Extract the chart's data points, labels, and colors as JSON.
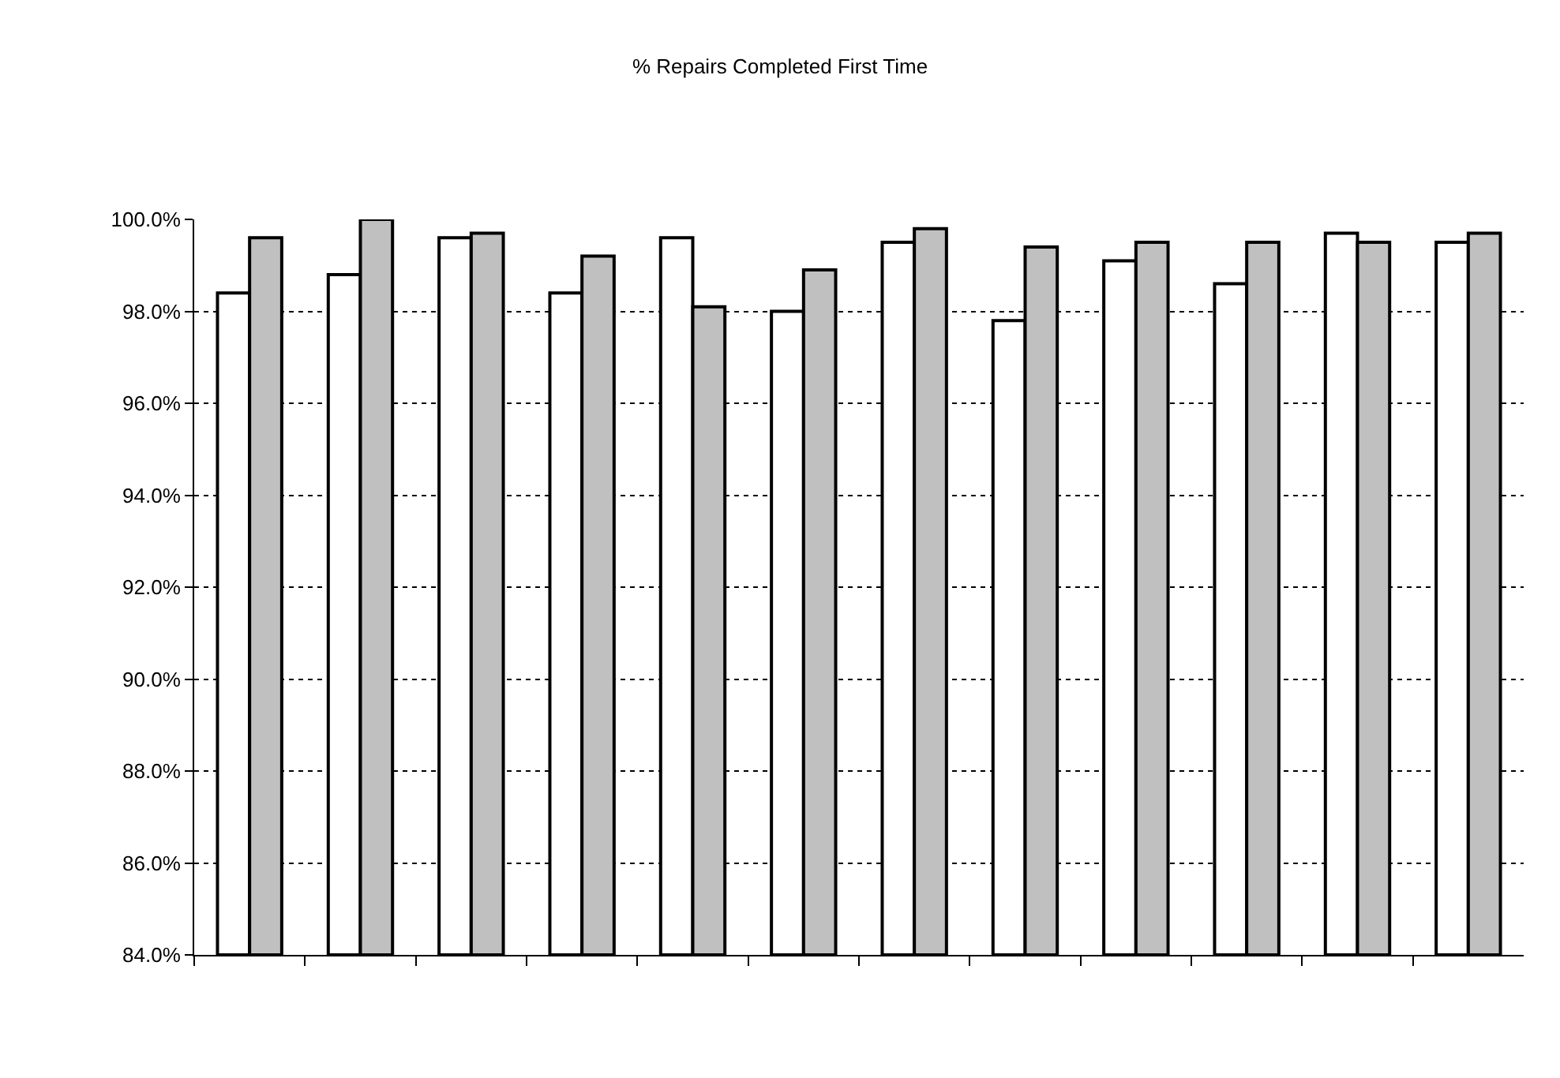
{
  "chart_data": {
    "type": "bar",
    "title": "% Repairs Completed First Time",
    "categories": [
      null,
      null,
      null,
      null,
      null,
      null,
      null,
      null,
      null,
      null,
      null,
      null
    ],
    "series": [
      {
        "color": "#ffffff",
        "values": [
          98.4,
          98.8,
          99.6,
          98.4,
          99.6,
          98.0,
          99.5,
          97.8,
          99.1,
          98.6,
          99.7,
          99.5
        ]
      },
      {
        "color": "#c0c0c0",
        "values": [
          99.6,
          100.0,
          99.7,
          99.2,
          98.1,
          98.9,
          99.8,
          99.4,
          99.5,
          99.5,
          99.5,
          99.7
        ]
      }
    ],
    "ylim": [
      84,
      100
    ],
    "yticks": [
      {
        "value": 84,
        "label": "84.0%"
      },
      {
        "value": 86,
        "label": "86.0%"
      },
      {
        "value": 88,
        "label": "88.0%"
      },
      {
        "value": 90,
        "label": "90.0%"
      },
      {
        "value": 92,
        "label": "92.0%"
      },
      {
        "value": 94,
        "label": "94.0%"
      },
      {
        "value": 96,
        "label": "96.0%"
      },
      {
        "value": 98,
        "label": "98.0%"
      },
      {
        "value": 100,
        "label": "100.0%"
      }
    ],
    "grid": "y",
    "tick_labels": "y"
  }
}
